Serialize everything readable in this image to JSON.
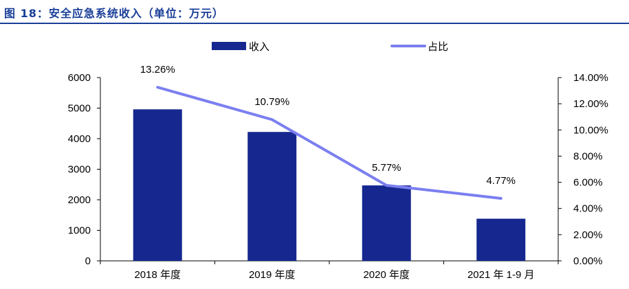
{
  "figure": {
    "title": "图 18：安全应急系统收入（单位：万元）"
  },
  "colors": {
    "title": "#1a3f99",
    "bar": "#16288f",
    "line": "#7b7ff0",
    "axis": "#000000"
  },
  "chart_data": {
    "type": "bar",
    "categories": [
      "2018 年度",
      "2019 年度",
      "2020 年度",
      "2021 年 1-9 月"
    ],
    "series": [
      {
        "name": "收入",
        "type": "bar",
        "axis": "left",
        "values": [
          4960,
          4220,
          2470,
          1380
        ]
      },
      {
        "name": "占比",
        "type": "line",
        "axis": "right",
        "values": [
          13.26,
          10.79,
          5.77,
          4.77
        ],
        "labels": [
          "13.26%",
          "10.79%",
          "5.77%",
          "4.77%"
        ]
      }
    ],
    "ylim_left": [
      0,
      6000
    ],
    "yticks_left": [
      "0",
      "1000",
      "2000",
      "3000",
      "4000",
      "5000",
      "6000"
    ],
    "ylim_right": [
      0,
      14
    ],
    "yticks_right": [
      "0.00%",
      "2.00%",
      "4.00%",
      "6.00%",
      "8.00%",
      "10.00%",
      "12.00%",
      "14.00%"
    ],
    "legend_position": "top",
    "grid": false
  }
}
